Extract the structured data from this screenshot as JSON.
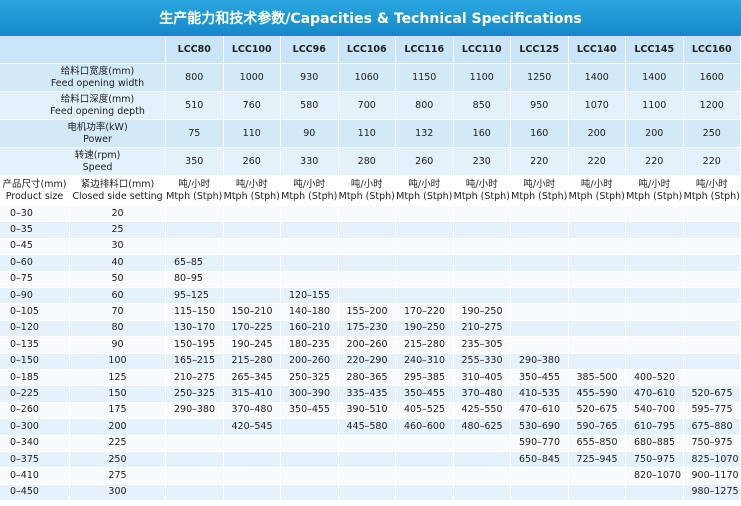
{
  "header": {
    "title": "生产能力和技术参数/Capacities & Technical Specifications"
  },
  "table": {
    "models": [
      "LCC80",
      "LCC100",
      "LCC96",
      "LCC106",
      "LCC116",
      "LCC110",
      "LCC125",
      "LCC140",
      "LCC145",
      "LCC160"
    ],
    "params": [
      {
        "label_cn": "给料口宽度(mm)",
        "label_en": "Feed opening width",
        "values": [
          800,
          1000,
          930,
          1060,
          1150,
          1100,
          1250,
          1400,
          1400,
          1600
        ]
      },
      {
        "label_cn": "给料口深度(mm)",
        "label_en": "Feed opening depth",
        "values": [
          510,
          760,
          580,
          700,
          800,
          850,
          950,
          1070,
          1100,
          1200
        ]
      },
      {
        "label_cn": "电机功率(kW)",
        "label_en": "Power",
        "values": [
          75,
          110,
          90,
          110,
          132,
          160,
          160,
          200,
          200,
          250
        ]
      },
      {
        "label_cn": "转速(rpm)",
        "label_en": "Speed",
        "values": [
          350,
          260,
          330,
          280,
          260,
          230,
          220,
          220,
          220,
          220
        ]
      }
    ],
    "subheader": {
      "size_cn": "产品尺寸(mm)",
      "size_en": "Product size",
      "css_cn": "紧边排料口(mm)",
      "css_en": "Closed side setting",
      "unit_cn": "吨/小时",
      "unit_en": "Mtph (Stph)"
    },
    "rows": [
      [
        "0–30",
        "20",
        null,
        null,
        null,
        null,
        null,
        null,
        null,
        null,
        null,
        null
      ],
      [
        "0–35",
        "25",
        null,
        null,
        null,
        null,
        null,
        null,
        null,
        null,
        null,
        null
      ],
      [
        "0–45",
        "30",
        null,
        null,
        null,
        null,
        null,
        null,
        null,
        null,
        null,
        null
      ],
      [
        "0–60",
        "40",
        "65–85",
        null,
        null,
        null,
        null,
        null,
        null,
        null,
        null,
        null
      ],
      [
        "0–75",
        "50",
        "80–95",
        null,
        null,
        null,
        null,
        null,
        null,
        null,
        null,
        null
      ],
      [
        "0–90",
        "60",
        "95–125",
        null,
        "120–155",
        null,
        null,
        null,
        null,
        null,
        null,
        null
      ],
      [
        "0–105",
        "70",
        "115–150",
        "150–210",
        "140–180",
        "155–200",
        "170–220",
        "190–250",
        null,
        null,
        null,
        null
      ],
      [
        "0–120",
        "80",
        "130–170",
        "170–225",
        "160–210",
        "175–230",
        "190–250",
        "210–275",
        null,
        null,
        null,
        null
      ],
      [
        "0–135",
        "90",
        "150–195",
        "190–245",
        "180–235",
        "200–260",
        "215–280",
        "235–305",
        null,
        null,
        null,
        null
      ],
      [
        "0–150",
        "100",
        "165–215",
        "215–280",
        "200–260",
        "220–290",
        "240–310",
        "255–330",
        "290–380",
        null,
        null,
        null
      ],
      [
        "0–185",
        "125",
        "210–275",
        "265–345",
        "250–325",
        "280–365",
        "295–385",
        "310–405",
        "350–455",
        "385–500",
        "400–520",
        null
      ],
      [
        "0–225",
        "150",
        "250–325",
        "315–410",
        "300–390",
        "335–435",
        "350–455",
        "370–480",
        "410–535",
        "455–590",
        "470–610",
        "520–675"
      ],
      [
        "0–260",
        "175",
        "290–380",
        "370–480",
        "350–455",
        "390–510",
        "405–525",
        "425–550",
        "470–610",
        "520–675",
        "540–700",
        "595–775"
      ],
      [
        "0–300",
        "200",
        null,
        "420–545",
        null,
        "445–580",
        "460–600",
        "480–625",
        "530–690",
        "590–765",
        "610–795",
        "675–880"
      ],
      [
        "0–340",
        "225",
        null,
        null,
        null,
        null,
        null,
        null,
        "590–770",
        "655–850",
        "680–885",
        "750–975"
      ],
      [
        "0–375",
        "250",
        null,
        null,
        null,
        null,
        null,
        null,
        "650–845",
        "725–945",
        "750–975",
        "825–1070"
      ],
      [
        "0–410",
        "275",
        null,
        null,
        null,
        null,
        null,
        null,
        null,
        null,
        "820–1070",
        "900–1170"
      ],
      [
        "0–450",
        "300",
        null,
        null,
        null,
        null,
        null,
        null,
        null,
        null,
        null,
        "980–1275"
      ]
    ]
  }
}
